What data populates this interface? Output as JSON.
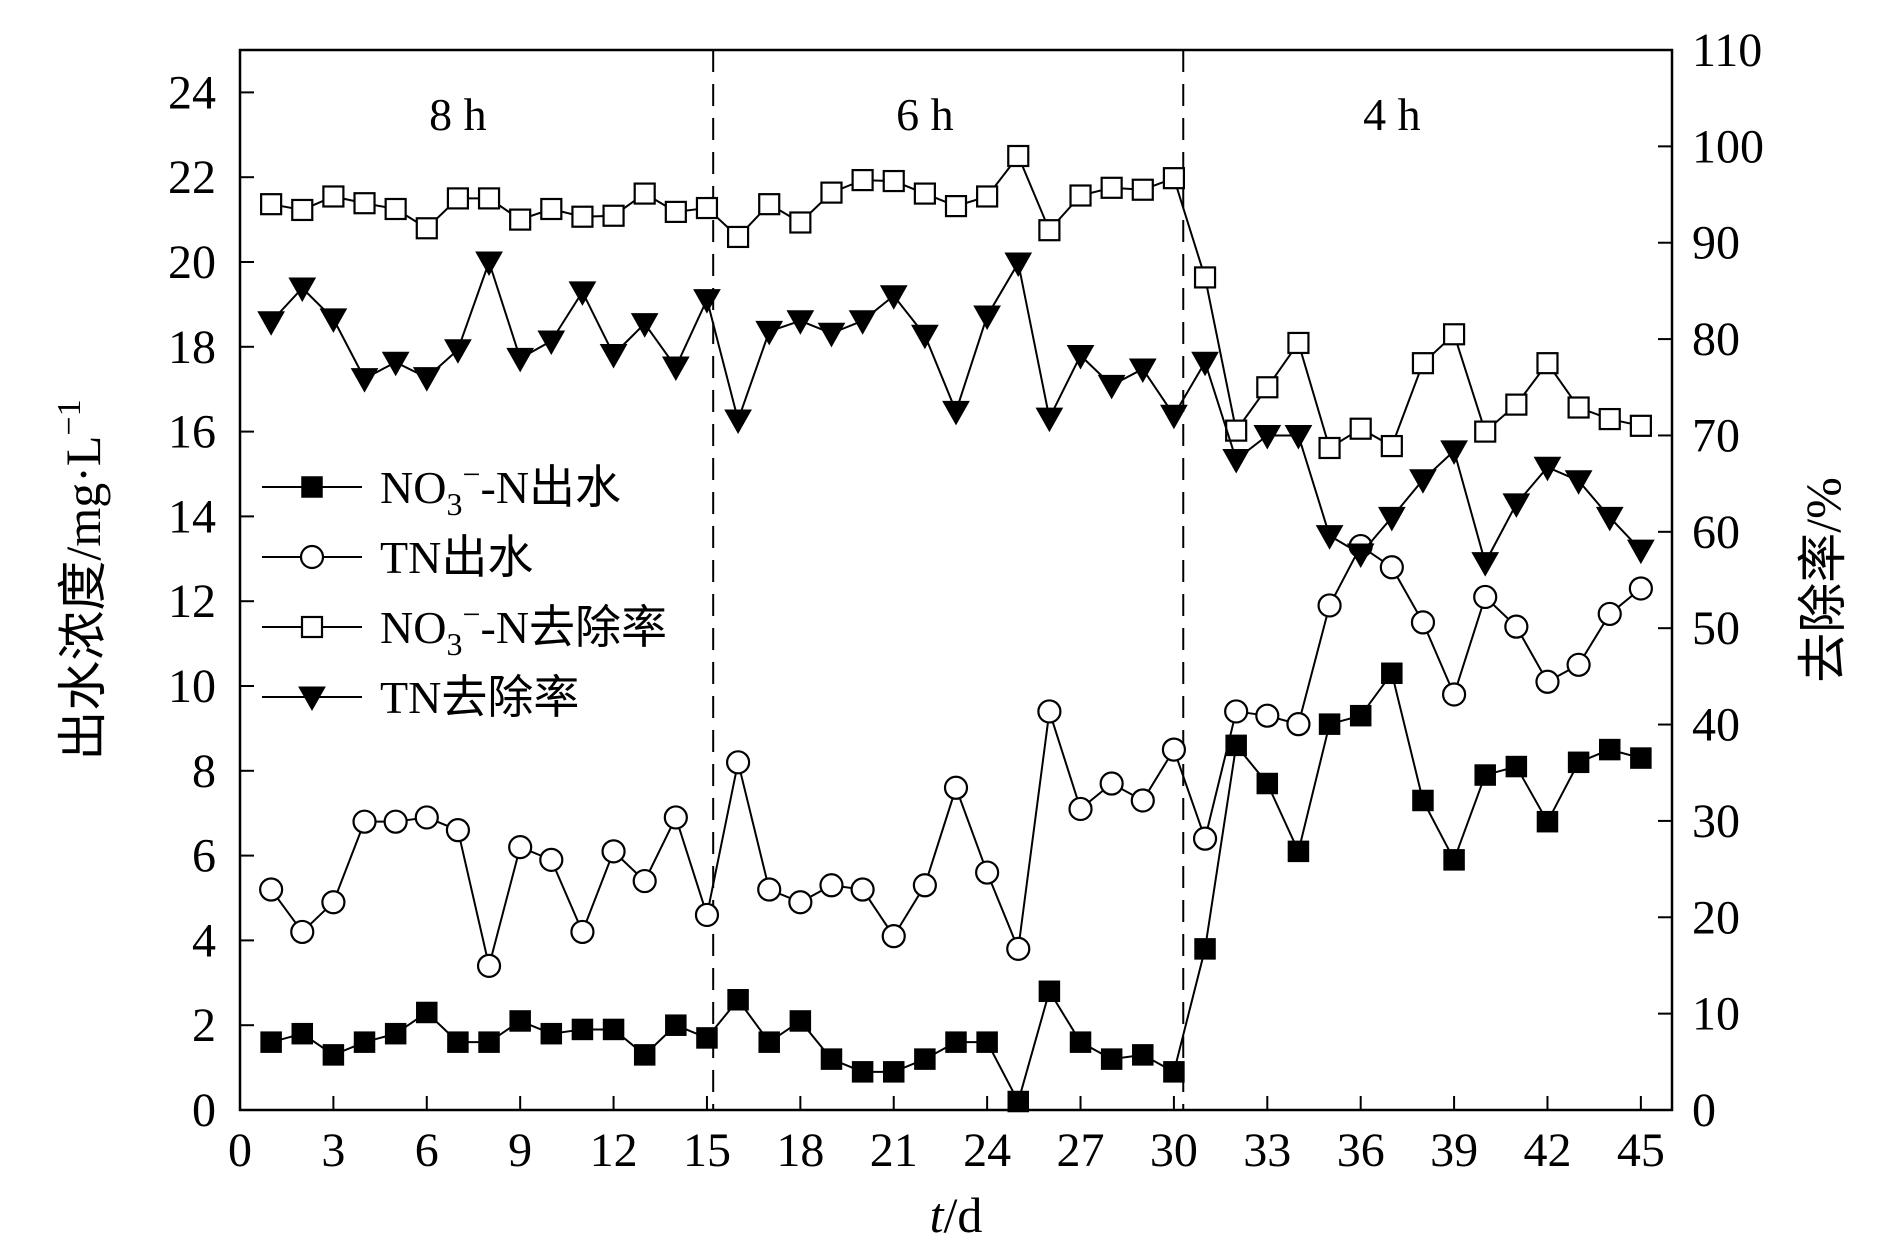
{
  "chart_data": {
    "type": "line",
    "x_label": {
      "italic": "t",
      "rest": "/d"
    },
    "y_left_label": {
      "main": "出水浓度/mg·L",
      "sup": "−1"
    },
    "y_right_label": "去除率/%",
    "x_range": [
      0,
      46
    ],
    "y_left_range": [
      0,
      25
    ],
    "y_right_range": [
      0,
      110
    ],
    "x_ticks": [
      0,
      3,
      6,
      9,
      12,
      15,
      18,
      21,
      24,
      27,
      30,
      33,
      36,
      39,
      42,
      45
    ],
    "y_left_ticks": [
      0,
      2,
      4,
      6,
      8,
      10,
      12,
      14,
      16,
      18,
      20,
      22,
      24
    ],
    "y_right_ticks": [
      0,
      10,
      20,
      30,
      40,
      50,
      60,
      70,
      80,
      90,
      100,
      110
    ],
    "phase_boundaries": [
      15.2,
      30.3
    ],
    "phases": [
      {
        "label": "8 h",
        "x": 7
      },
      {
        "label": "6 h",
        "x": 22
      },
      {
        "label": "4 h",
        "x": 37
      }
    ],
    "grid": false,
    "legend_position": "center-left",
    "x": [
      1,
      2,
      3,
      4,
      5,
      6,
      7,
      8,
      9,
      10,
      11,
      12,
      13,
      14,
      15,
      16,
      17,
      18,
      19,
      20,
      21,
      22,
      23,
      24,
      25,
      26,
      27,
      28,
      29,
      30,
      31,
      32,
      33,
      34,
      35,
      36,
      37,
      38,
      39,
      40,
      41,
      42,
      43,
      44,
      45
    ],
    "series": [
      {
        "key": "no3_eff",
        "name_parts": {
          "pre": "NO",
          "sub": "3",
          "sup": "−",
          "post": "-N出水"
        },
        "axis": "left",
        "marker": "square-filled",
        "values": [
          1.6,
          1.8,
          1.3,
          1.6,
          1.8,
          2.3,
          1.6,
          1.6,
          2.1,
          1.8,
          1.9,
          1.9,
          1.3,
          2.0,
          1.7,
          2.6,
          1.6,
          2.1,
          1.2,
          0.9,
          0.9,
          1.2,
          1.6,
          1.6,
          0.2,
          2.8,
          1.6,
          1.2,
          1.3,
          0.9,
          3.8,
          8.6,
          7.7,
          6.1,
          9.1,
          9.3,
          10.3,
          7.3,
          5.9,
          7.9,
          8.1,
          6.8,
          8.2,
          8.5,
          8.3
        ]
      },
      {
        "key": "tn_eff",
        "name_parts": {
          "pre": "TN出水",
          "sub": "",
          "sup": "",
          "post": ""
        },
        "axis": "left",
        "marker": "circle-open",
        "values": [
          5.2,
          4.2,
          4.9,
          6.8,
          6.8,
          6.9,
          6.6,
          3.4,
          6.2,
          5.9,
          4.2,
          6.1,
          5.4,
          6.9,
          4.6,
          8.2,
          5.2,
          4.9,
          5.3,
          5.2,
          4.1,
          5.3,
          7.6,
          5.6,
          3.8,
          9.4,
          7.1,
          7.7,
          7.3,
          8.5,
          6.4,
          9.4,
          9.3,
          9.1,
          11.9,
          13.3,
          12.8,
          11.5,
          9.8,
          12.1,
          11.4,
          10.1,
          10.5,
          11.7,
          12.3
        ]
      },
      {
        "key": "no3_rem",
        "name_parts": {
          "pre": "NO",
          "sub": "3",
          "sup": "−",
          "post": "-N去除率"
        },
        "axis": "right",
        "marker": "square-open",
        "values": [
          94.0,
          93.4,
          94.8,
          94.1,
          93.5,
          91.5,
          94.6,
          94.6,
          92.4,
          93.5,
          92.7,
          92.8,
          95.1,
          93.2,
          93.6,
          90.6,
          94.0,
          92.1,
          95.2,
          96.5,
          96.4,
          95.1,
          93.8,
          94.8,
          99.0,
          91.3,
          94.9,
          95.7,
          95.5,
          96.7,
          86.4,
          70.5,
          75.0,
          79.6,
          68.7,
          70.7,
          68.9,
          77.5,
          80.5,
          70.4,
          73.2,
          77.5,
          72.9,
          71.7,
          71.0
        ]
      },
      {
        "key": "tn_rem",
        "name_parts": {
          "pre": "TN去除率",
          "sub": "",
          "sup": "",
          "post": ""
        },
        "axis": "right",
        "marker": "triangle-down-filled",
        "values": [
          81.8,
          85.3,
          82.1,
          75.9,
          77.6,
          76.0,
          78.9,
          88.0,
          78.0,
          79.8,
          84.9,
          78.4,
          81.6,
          77.1,
          84.1,
          71.6,
          80.8,
          81.9,
          80.6,
          81.9,
          84.5,
          80.4,
          72.5,
          82.4,
          87.9,
          71.8,
          78.3,
          75.2,
          76.9,
          72.1,
          77.6,
          67.5,
          70.0,
          70.0,
          59.6,
          57.7,
          61.5,
          65.4,
          68.4,
          56.8,
          62.9,
          66.7,
          65.3,
          61.5,
          58.1
        ]
      }
    ]
  },
  "colors": {
    "ink": "#000000",
    "background": "#ffffff"
  }
}
